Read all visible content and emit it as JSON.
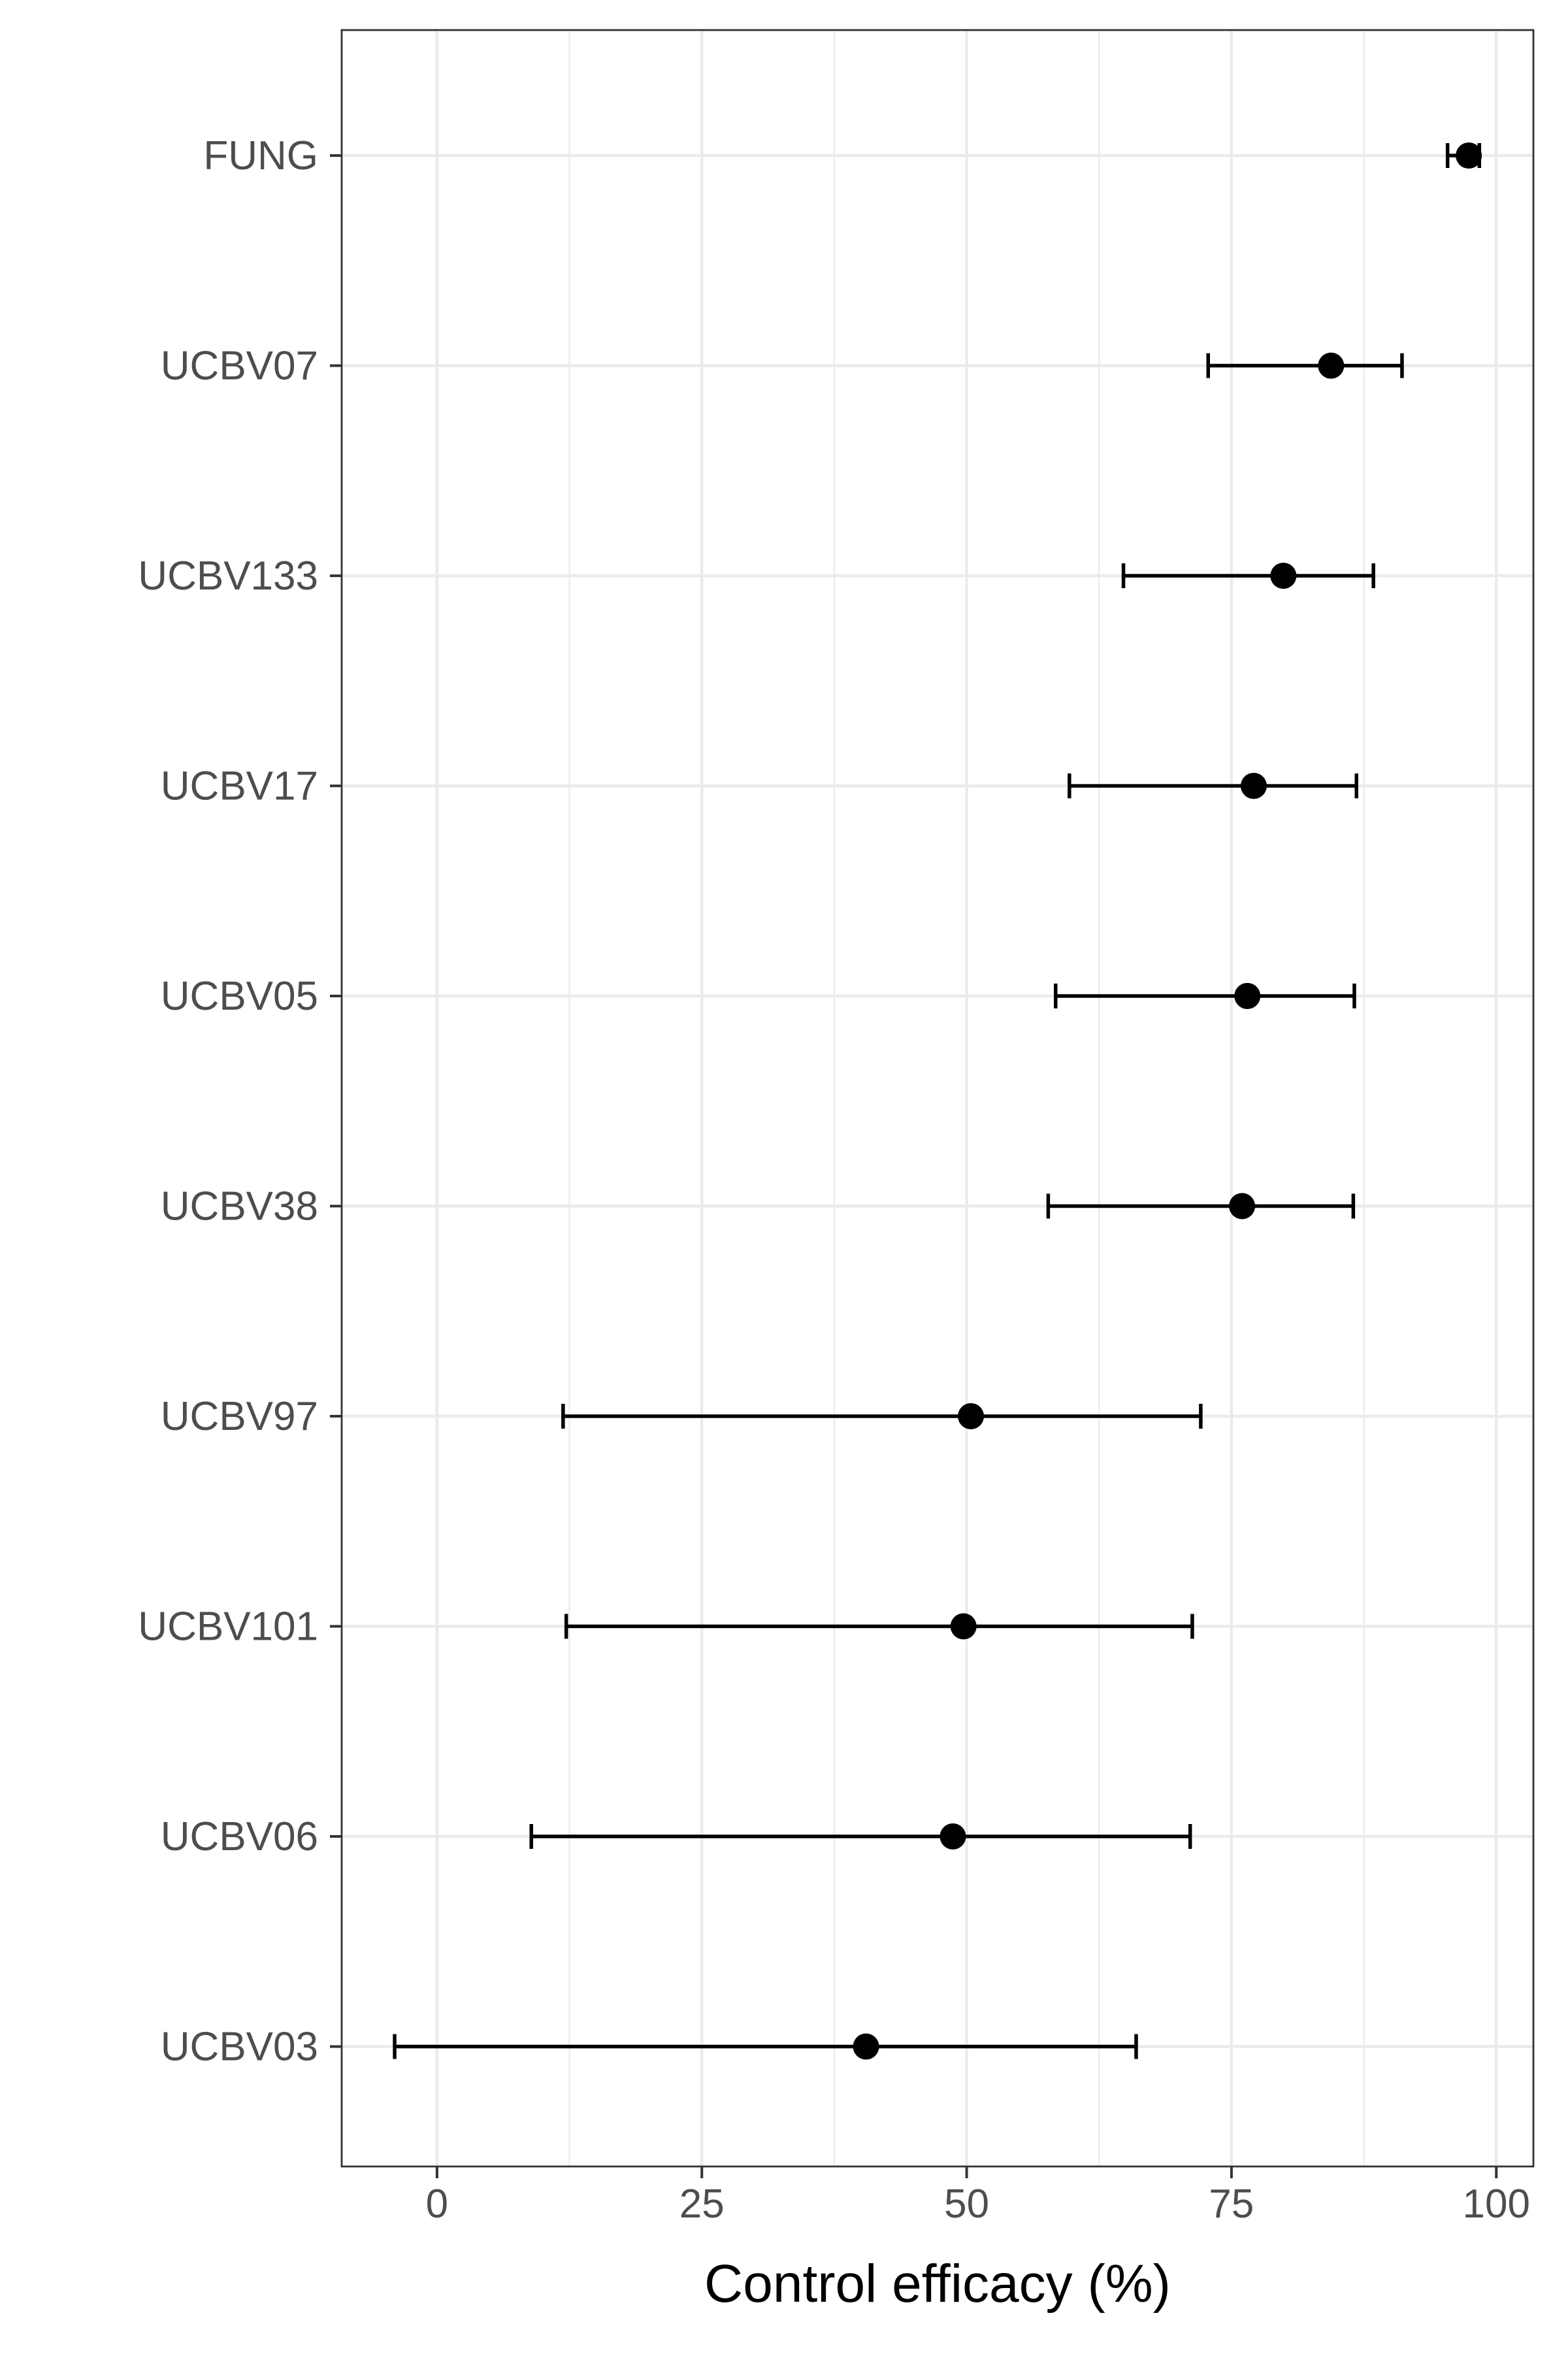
{
  "chart_data": {
    "type": "scatter",
    "subtype": "point-range",
    "title": "",
    "xlabel": "Control efficacy (%)",
    "ylabel": "",
    "xlim": [
      -9,
      103.5
    ],
    "xticks": [
      0,
      25,
      50,
      75,
      100
    ],
    "xtick_labels": [
      "0",
      "25",
      "50",
      "75",
      "100"
    ],
    "grid": true,
    "categories": [
      "FUNG",
      "UCBV07",
      "UCBV133",
      "UCBV17",
      "UCBV05",
      "UCBV38",
      "UCBV97",
      "UCBV101",
      "UCBV06",
      "UCBV03"
    ],
    "estimate": [
      97.4,
      84.4,
      79.9,
      77.1,
      76.5,
      76.0,
      50.4,
      49.7,
      48.7,
      40.5
    ],
    "lower": [
      95.4,
      72.8,
      64.8,
      59.7,
      58.4,
      57.7,
      11.9,
      12.2,
      8.9,
      -4.0
    ],
    "upper": [
      98.4,
      91.1,
      88.4,
      86.8,
      86.6,
      86.5,
      72.1,
      71.3,
      71.1,
      66.0
    ],
    "colors": {
      "panel_border": "#333333",
      "grid": "#ebebeb",
      "point": "#000000",
      "tick_text": "#4d4d4d"
    }
  }
}
